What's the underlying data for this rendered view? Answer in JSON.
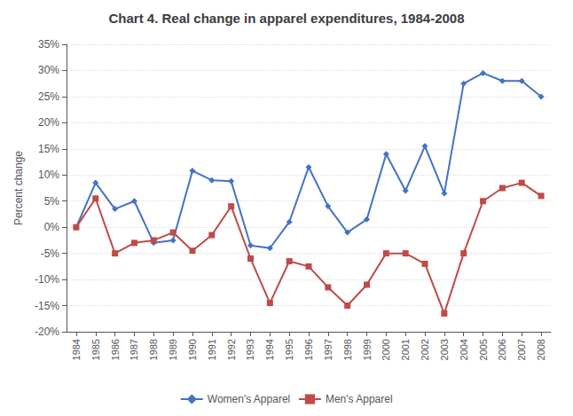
{
  "chart_data": {
    "type": "line",
    "title": "Chart 4. Real change in apparel expenditures, 1984-2008",
    "ylabel": "Percent change",
    "x": [
      1984,
      1985,
      1986,
      1987,
      1988,
      1989,
      1990,
      1991,
      1992,
      1993,
      1994,
      1995,
      1996,
      1997,
      1998,
      1999,
      2000,
      2001,
      2002,
      2003,
      2004,
      2005,
      2006,
      2007,
      2008
    ],
    "series": [
      {
        "name": "Women's Apparel",
        "color": "#4472C4",
        "marker": "diamond",
        "line_style": "solid",
        "values": [
          0,
          8.5,
          3.5,
          5.0,
          -3.0,
          -2.5,
          10.8,
          9.0,
          8.8,
          -3.5,
          -4.0,
          1.0,
          11.5,
          4.0,
          -1.0,
          1.5,
          14.0,
          7.0,
          15.5,
          6.5,
          27.5,
          29.5,
          28.0,
          28.0,
          25.0
        ]
      },
      {
        "name": "Men's Apparel",
        "color": "#BE4B48",
        "marker": "square",
        "line_style": "solid",
        "values": [
          0,
          5.5,
          -5.0,
          -3.0,
          -2.5,
          -1.0,
          -4.5,
          -1.5,
          4.0,
          -6.0,
          -14.5,
          -6.5,
          -7.5,
          -11.5,
          -15.0,
          -11.0,
          -5.0,
          -5.0,
          -7.0,
          -16.5,
          -5.0,
          5.0,
          7.5,
          8.5,
          6.0
        ]
      }
    ],
    "xlim": [
      1983.5,
      2008.5
    ],
    "xticks": [
      1984,
      1985,
      1986,
      1987,
      1988,
      1989,
      1990,
      1991,
      1992,
      1993,
      1994,
      1995,
      1996,
      1997,
      1998,
      1999,
      2000,
      2001,
      2002,
      2003,
      2004,
      2005,
      2006,
      2007,
      2008
    ],
    "ylim": [
      -20,
      35
    ],
    "yticks": [
      {
        "value": -20,
        "label": "-20%"
      },
      {
        "value": -15,
        "label": "-15%"
      },
      {
        "value": -10,
        "label": "-10%"
      },
      {
        "value": -5,
        "label": "-5%"
      },
      {
        "value": 0,
        "label": "0%"
      },
      {
        "value": 5,
        "label": "5%"
      },
      {
        "value": 10,
        "label": "10%"
      },
      {
        "value": 15,
        "label": "15%"
      },
      {
        "value": 20,
        "label": "20%"
      },
      {
        "value": 25,
        "label": "25%"
      },
      {
        "value": 30,
        "label": "30%"
      },
      {
        "value": 35,
        "label": "35%"
      }
    ],
    "grid": true,
    "legend": "bottom"
  }
}
